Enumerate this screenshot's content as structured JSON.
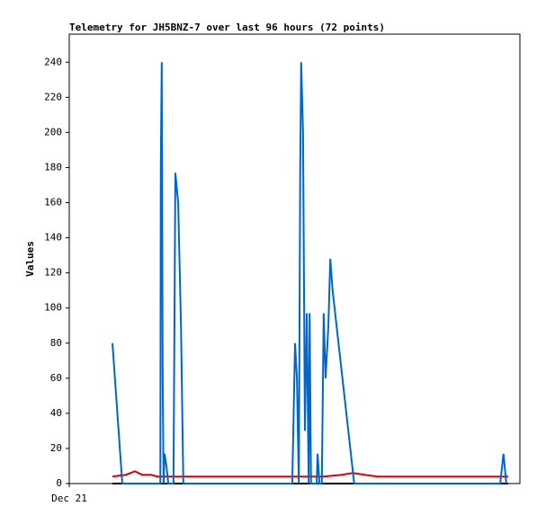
{
  "chart_data": {
    "type": "line",
    "title": "Telemetry for JH5BNZ-7 over last 96 hours (72 points)",
    "y_label": "Values",
    "xlim": [
      0,
      96
    ],
    "xticks": [
      {
        "value": 0,
        "label": "Dec 21"
      }
    ],
    "ylim": [
      0,
      256
    ],
    "yticks": [
      0,
      20,
      40,
      60,
      80,
      100,
      120,
      140,
      160,
      180,
      200,
      220,
      240
    ],
    "series": [
      {
        "color": "#000000",
        "x": [
          9.2,
          93.5
        ],
        "values": [
          0,
          0
        ]
      },
      {
        "color": "#dd0000",
        "x": [
          9.2,
          12.1,
          14.0,
          15.5,
          17.4,
          18.8,
          54.2,
          58.1,
          60.4,
          62.9,
          65.7,
          93.5
        ],
        "values": [
          4,
          5,
          7,
          5,
          5,
          4,
          4,
          5,
          6,
          5,
          4,
          4
        ]
      },
      {
        "color": "#0066cc",
        "x": [
          9.2,
          11.3,
          19.4,
          19.5,
          19.7,
          19.9,
          20.1,
          20.3,
          20.7,
          21.1,
          22.2,
          22.6,
          23.2,
          23.8,
          24.3,
          47.5,
          48.1,
          48.5,
          48.9,
          49.2,
          49.4,
          49.8,
          50.2,
          50.6,
          51.0,
          51.2,
          51.5,
          52.7,
          52.9,
          53.3,
          53.8,
          54.2,
          54.6,
          55.2,
          55.6,
          56.1,
          60.7,
          91.8,
          92.5,
          93.1
        ],
        "values": [
          80,
          0,
          0,
          180,
          240,
          60,
          0,
          17,
          10,
          0,
          0,
          177,
          160,
          90,
          0,
          0,
          80,
          60,
          0,
          180,
          240,
          200,
          30,
          97,
          0,
          97,
          0,
          0,
          17,
          0,
          0,
          97,
          60,
          90,
          128,
          110,
          0,
          0,
          17,
          0
        ]
      }
    ]
  }
}
